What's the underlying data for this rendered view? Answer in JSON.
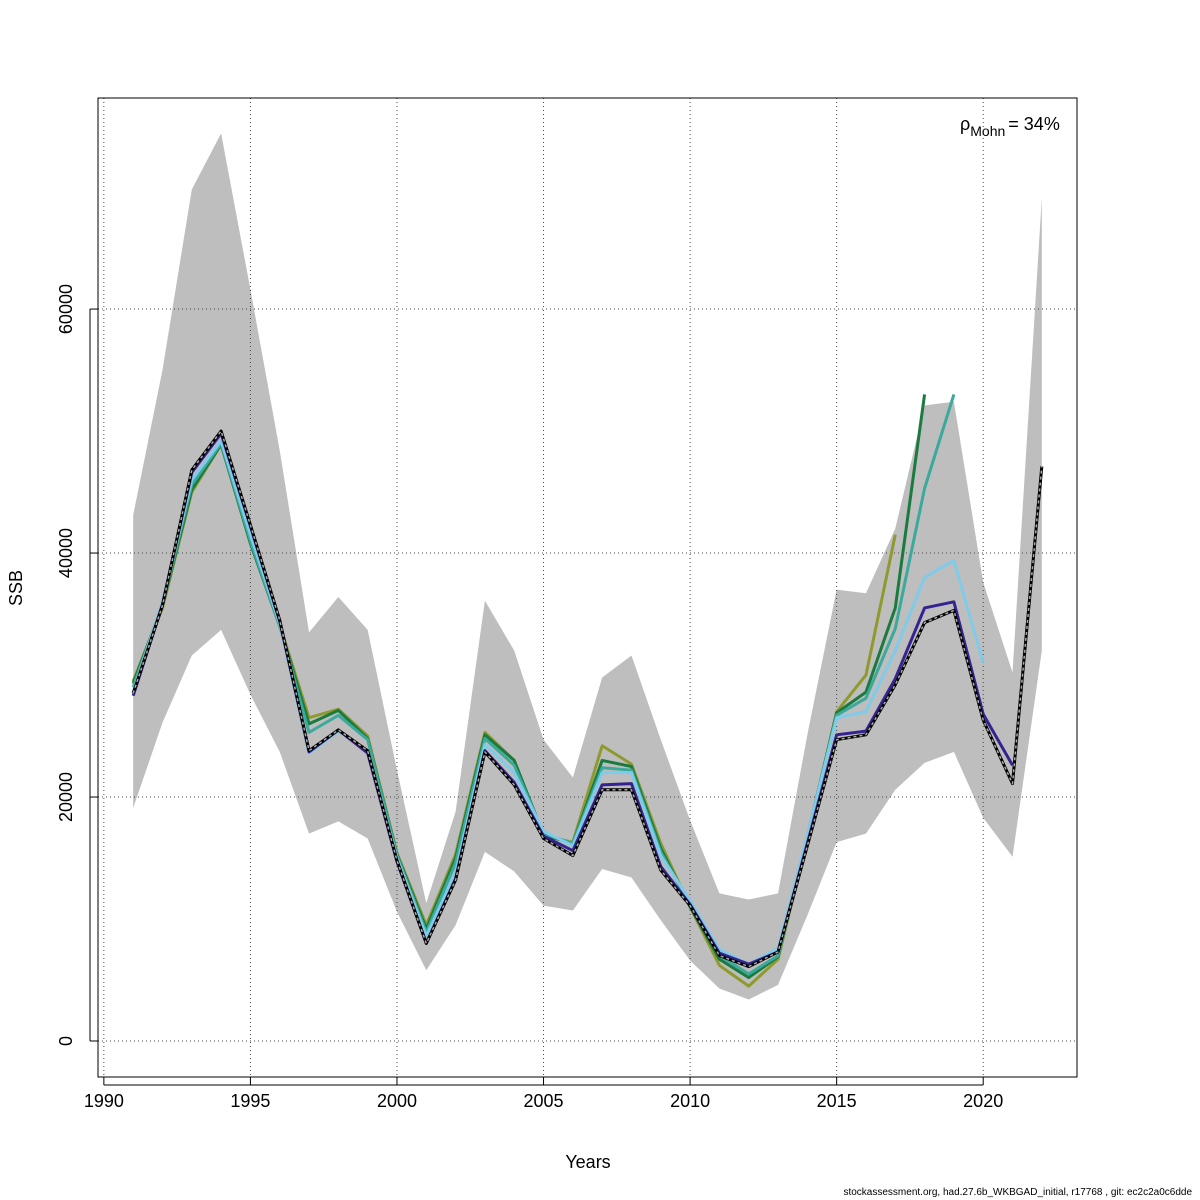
{
  "chart_data": {
    "type": "line",
    "x_label": "Years",
    "y_label": "SSB",
    "annotation": {
      "symbol": "ρ",
      "subscript": "Mohn",
      "text": "= 34%"
    },
    "footer": "stockassessment.org, had.27.6b_WKBGAD_initial, r17768 , git: ec2c2a0c6dde",
    "x": [
      1991,
      1992,
      1993,
      1994,
      1995,
      1996,
      1997,
      1998,
      1999,
      2000,
      2001,
      2002,
      2003,
      2004,
      2005,
      2006,
      2007,
      2008,
      2009,
      2010,
      2011,
      2012,
      2013,
      2014,
      2015,
      2016,
      2017,
      2018,
      2019,
      2020,
      2021,
      2022
    ],
    "band": {
      "color": "#bebebe",
      "upper": [
        43100,
        55000,
        69800,
        74400,
        61600,
        48400,
        33500,
        36400,
        33700,
        22200,
        11300,
        18800,
        36100,
        32000,
        24700,
        21600,
        29800,
        31600,
        24700,
        18100,
        12100,
        11600,
        12100,
        25100,
        37000,
        36700,
        42000,
        52100,
        52400,
        37600,
        30200,
        69100
      ],
      "lower": [
        19100,
        26100,
        31600,
        33700,
        28400,
        23700,
        17000,
        18000,
        16600,
        10600,
        5800,
        9500,
        15500,
        13900,
        11100,
        10700,
        14100,
        13400,
        9900,
        6600,
        4300,
        3400,
        4600,
        10300,
        16300,
        17000,
        20600,
        22800,
        23700,
        18300,
        15100,
        32000
      ]
    },
    "series": [
      {
        "color": "#8f9a2e",
        "values": [
          29500,
          35500,
          45000,
          48900,
          40800,
          34100,
          26500,
          27200,
          25000,
          15400,
          9500,
          15300,
          25300,
          23000,
          16800,
          16300,
          24200,
          22700,
          16200,
          11000,
          6200,
          4500,
          6700,
          16600,
          27000,
          30000,
          41500,
          null,
          null,
          null,
          null,
          null
        ]
      },
      {
        "color": "#1b7a3e",
        "values": [
          29300,
          35700,
          45200,
          48900,
          40800,
          34000,
          26000,
          27100,
          24800,
          15300,
          9200,
          15000,
          25100,
          23000,
          16900,
          16200,
          23000,
          22500,
          15800,
          11000,
          6700,
          5200,
          6900,
          16700,
          26900,
          28600,
          35500,
          53000,
          null,
          null,
          null,
          null
        ]
      },
      {
        "color": "#3ba99c",
        "values": [
          29000,
          35800,
          45600,
          49000,
          41000,
          34000,
          25300,
          26700,
          24700,
          15200,
          8900,
          14600,
          24800,
          22600,
          17000,
          16200,
          22400,
          22200,
          15500,
          11200,
          7000,
          5500,
          7000,
          16800,
          26700,
          28100,
          33800,
          45300,
          53000,
          null,
          null,
          null
        ]
      },
      {
        "color": "#7ecbea",
        "values": [
          28600,
          36000,
          46000,
          49200,
          41500,
          34200,
          23600,
          25400,
          23800,
          15000,
          8600,
          13800,
          24300,
          22000,
          17200,
          16000,
          22000,
          22000,
          15200,
          11500,
          7500,
          6300,
          7600,
          16800,
          26500,
          27000,
          32000,
          38000,
          39400,
          31000,
          null,
          null
        ]
      },
      {
        "color": "#36238f",
        "values": [
          28300,
          35800,
          46600,
          49800,
          42200,
          34400,
          23700,
          25500,
          23600,
          14700,
          8000,
          13300,
          23800,
          21200,
          16800,
          15600,
          21000,
          21100,
          14300,
          11200,
          7200,
          6300,
          7300,
          16200,
          25100,
          25400,
          29700,
          35500,
          36000,
          26800,
          22600,
          null
        ]
      },
      {
        "color": "#000000",
        "dashed": true,
        "values": [
          28500,
          35700,
          46800,
          50000,
          42300,
          34500,
          23800,
          25500,
          23800,
          14800,
          8000,
          13200,
          23700,
          21000,
          16600,
          15200,
          20600,
          20600,
          14000,
          11100,
          7000,
          6100,
          7300,
          16000,
          24700,
          25100,
          29200,
          34300,
          35300,
          26300,
          21100,
          47100
        ]
      }
    ],
    "xlim": [
      1989.8,
      2023.2
    ],
    "ylim": [
      -2950,
      77300
    ],
    "xticks": [
      1990,
      1995,
      2000,
      2005,
      2010,
      2015,
      2020
    ],
    "yticks": [
      0,
      20000,
      40000,
      60000
    ],
    "grid": true
  }
}
